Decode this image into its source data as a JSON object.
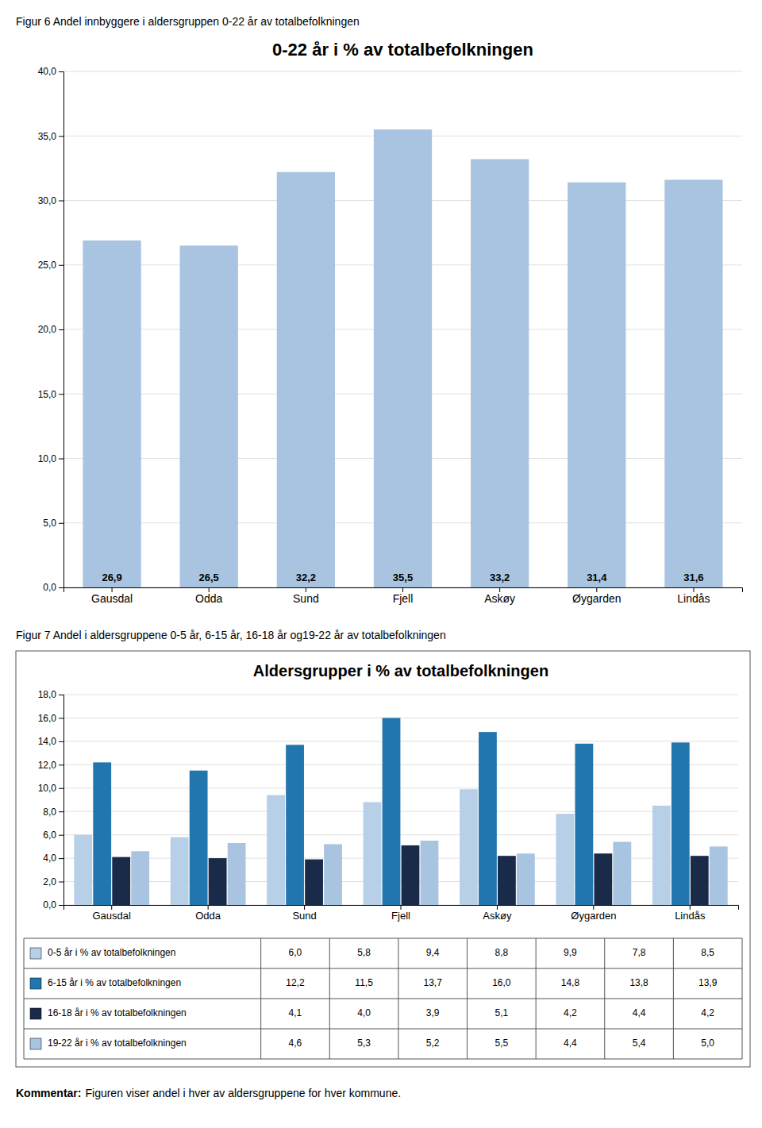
{
  "chart_data": [
    {
      "type": "bar",
      "subtitle": "Figur 6 Andel innbyggere i aldersgruppen 0-22 år av totalbefolkningen",
      "title": "0-22 år i % av totalbefolkningen",
      "categories": [
        "Gausdal",
        "Odda",
        "Sund",
        "Fjell",
        "Askøy",
        "Øygarden",
        "Lindås"
      ],
      "values": [
        26.9,
        26.5,
        32.2,
        35.5,
        33.2,
        31.4,
        31.6
      ],
      "value_labels": [
        "26,9",
        "26,5",
        "32,2",
        "35,5",
        "33,2",
        "31,4",
        "31,6"
      ],
      "data_labels": true,
      "color": "#a8c4e0",
      "ylim": [
        0,
        40
      ],
      "yticks": [
        {
          "value": 0,
          "label": "0,0"
        },
        {
          "value": 5,
          "label": "5,0"
        },
        {
          "value": 10,
          "label": "10,0"
        },
        {
          "value": 15,
          "label": "15,0"
        },
        {
          "value": 20,
          "label": "20,0"
        },
        {
          "value": 25,
          "label": "25,0"
        },
        {
          "value": 30,
          "label": "30,0"
        },
        {
          "value": 35,
          "label": "35,0"
        },
        {
          "value": 40,
          "label": "40,0"
        }
      ],
      "grid": true
    },
    {
      "type": "bar",
      "subtitle": "Figur 7 Andel i aldersgruppene 0-5 år, 6-15 år, 16-18 år og19-22 år av totalbefolkningen",
      "title": "Aldersgrupper i % av totalbefolkningen",
      "categories": [
        "Gausdal",
        "Odda",
        "Sund",
        "Fjell",
        "Askøy",
        "Øygarden",
        "Lindås"
      ],
      "series": [
        {
          "name": "0-5 år i % av totalbefolkningen",
          "color": "#b8cfe8",
          "values": [
            6.0,
            5.8,
            9.4,
            8.8,
            9.9,
            7.8,
            8.5
          ],
          "value_labels": [
            "6,0",
            "5,8",
            "9,4",
            "8,8",
            "9,9",
            "7,8",
            "8,5"
          ]
        },
        {
          "name": "6-15 år i % av totalbefolkningen",
          "color": "#2176ae",
          "values": [
            12.2,
            11.5,
            13.7,
            16.0,
            14.8,
            13.8,
            13.9
          ],
          "value_labels": [
            "12,2",
            "11,5",
            "13,7",
            "16,0",
            "14,8",
            "13,8",
            "13,9"
          ]
        },
        {
          "name": "16-18 år i % av totalbefolkningen",
          "color": "#1a2b4a",
          "values": [
            4.1,
            4.0,
            3.9,
            5.1,
            4.2,
            4.4,
            4.2
          ],
          "value_labels": [
            "4,1",
            "4,0",
            "3,9",
            "5,1",
            "4,2",
            "4,4",
            "4,2"
          ]
        },
        {
          "name": "19-22 år i % av totalbefolkningen",
          "color": "#a8c4e0",
          "values": [
            4.6,
            5.3,
            5.2,
            5.5,
            4.4,
            5.4,
            5.0
          ],
          "value_labels": [
            "4,6",
            "5,3",
            "5,2",
            "5,5",
            "4,4",
            "5,4",
            "5,0"
          ]
        }
      ],
      "ylim": [
        0,
        18
      ],
      "yticks": [
        {
          "value": 0,
          "label": "0,0"
        },
        {
          "value": 2,
          "label": "2,0"
        },
        {
          "value": 4,
          "label": "4,0"
        },
        {
          "value": 6,
          "label": "6,0"
        },
        {
          "value": 8,
          "label": "8,0"
        },
        {
          "value": 10,
          "label": "10,0"
        },
        {
          "value": 12,
          "label": "12,0"
        },
        {
          "value": 14,
          "label": "14,0"
        },
        {
          "value": 16,
          "label": "16,0"
        },
        {
          "value": 18,
          "label": "18,0"
        }
      ],
      "grid": true,
      "legend": "bottom",
      "annotations": [
        "Kommentar:",
        " Figuren viser andel i hver av aldersgruppene for hver kommune."
      ]
    }
  ]
}
